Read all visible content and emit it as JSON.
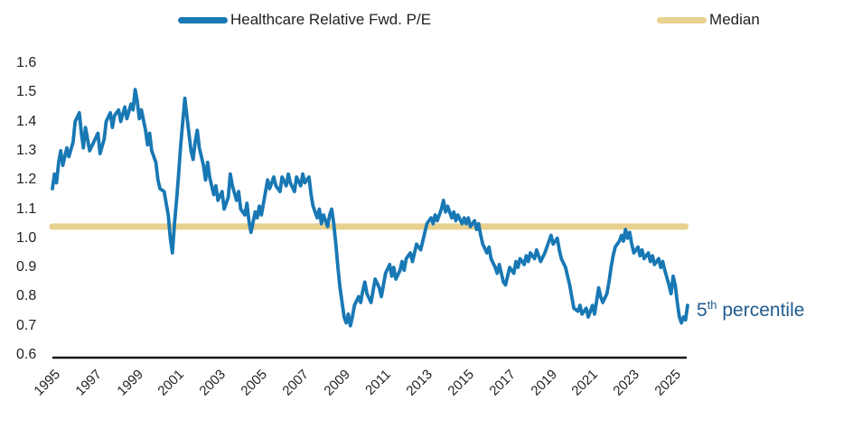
{
  "legend": {
    "series1_label": "Healthcare Relative Fwd. P/E",
    "series2_label": "Median"
  },
  "annotation": {
    "value": "5",
    "suffix": "th",
    "label": " percentile",
    "color": "#215C8F"
  },
  "colors": {
    "line": "#1878B4",
    "median": "#E8D08E",
    "axis": "#1a1a1a",
    "tick_text": "#231f20"
  },
  "chart_data": {
    "type": "line",
    "title": "",
    "xlabel": "",
    "ylabel": "",
    "legend_position": "top",
    "grid": false,
    "y_ticks": [
      "1.6",
      "1.5",
      "1.4",
      "1.3",
      "1.2",
      "1.1",
      "1.0",
      "0.9",
      "0.8",
      "0.7",
      "0.6"
    ],
    "y_tick_values": [
      1.6,
      1.5,
      1.4,
      1.3,
      1.2,
      1.1,
      1.0,
      0.9,
      0.8,
      0.7,
      0.6
    ],
    "x_ticks": [
      "1995",
      "1997",
      "1999",
      "2001",
      "2003",
      "2005",
      "2007",
      "2009",
      "2011",
      "2013",
      "2015",
      "2017",
      "2019",
      "2021",
      "2023",
      "2025"
    ],
    "x_tick_values": [
      1995,
      1997,
      1999,
      2001,
      2003,
      2005,
      2007,
      2009,
      2011,
      2013,
      2015,
      2017,
      2019,
      2021,
      2023,
      2025
    ],
    "ylim": [
      0.6,
      1.6
    ],
    "xlim": [
      1995,
      2025.9
    ],
    "median_value": 1.04,
    "series": [
      {
        "name": "Healthcare Relative Fwd. P/E",
        "points": [
          [
            1995.0,
            1.17
          ],
          [
            1995.1,
            1.22
          ],
          [
            1995.2,
            1.19
          ],
          [
            1995.3,
            1.26
          ],
          [
            1995.4,
            1.3
          ],
          [
            1995.5,
            1.25
          ],
          [
            1995.7,
            1.31
          ],
          [
            1995.8,
            1.28
          ],
          [
            1996.0,
            1.33
          ],
          [
            1996.1,
            1.4
          ],
          [
            1996.3,
            1.43
          ],
          [
            1996.4,
            1.36
          ],
          [
            1996.5,
            1.31
          ],
          [
            1996.6,
            1.38
          ],
          [
            1996.8,
            1.3
          ],
          [
            1997.0,
            1.33
          ],
          [
            1997.2,
            1.36
          ],
          [
            1997.3,
            1.29
          ],
          [
            1997.5,
            1.34
          ],
          [
            1997.6,
            1.4
          ],
          [
            1997.8,
            1.43
          ],
          [
            1997.9,
            1.38
          ],
          [
            1998.0,
            1.42
          ],
          [
            1998.2,
            1.44
          ],
          [
            1998.3,
            1.4
          ],
          [
            1998.5,
            1.45
          ],
          [
            1998.6,
            1.41
          ],
          [
            1998.8,
            1.46
          ],
          [
            1998.9,
            1.44
          ],
          [
            1999.0,
            1.51
          ],
          [
            1999.1,
            1.47
          ],
          [
            1999.2,
            1.41
          ],
          [
            1999.3,
            1.44
          ],
          [
            1999.5,
            1.37
          ],
          [
            1999.6,
            1.32
          ],
          [
            1999.7,
            1.36
          ],
          [
            1999.8,
            1.3
          ],
          [
            2000.0,
            1.26
          ],
          [
            2000.1,
            1.2
          ],
          [
            2000.2,
            1.17
          ],
          [
            2000.4,
            1.16
          ],
          [
            2000.5,
            1.12
          ],
          [
            2000.6,
            1.08
          ],
          [
            2000.7,
            1.0
          ],
          [
            2000.8,
            0.95
          ],
          [
            2000.9,
            1.05
          ],
          [
            2001.0,
            1.13
          ],
          [
            2001.1,
            1.22
          ],
          [
            2001.2,
            1.32
          ],
          [
            2001.3,
            1.4
          ],
          [
            2001.4,
            1.48
          ],
          [
            2001.5,
            1.42
          ],
          [
            2001.6,
            1.36
          ],
          [
            2001.7,
            1.3
          ],
          [
            2001.8,
            1.27
          ],
          [
            2001.9,
            1.33
          ],
          [
            2002.0,
            1.37
          ],
          [
            2002.1,
            1.31
          ],
          [
            2002.3,
            1.25
          ],
          [
            2002.4,
            1.2
          ],
          [
            2002.5,
            1.26
          ],
          [
            2002.6,
            1.21
          ],
          [
            2002.8,
            1.15
          ],
          [
            2002.9,
            1.18
          ],
          [
            2003.0,
            1.13
          ],
          [
            2003.2,
            1.16
          ],
          [
            2003.3,
            1.1
          ],
          [
            2003.5,
            1.14
          ],
          [
            2003.6,
            1.22
          ],
          [
            2003.7,
            1.18
          ],
          [
            2003.9,
            1.13
          ],
          [
            2004.0,
            1.16
          ],
          [
            2004.1,
            1.1
          ],
          [
            2004.3,
            1.08
          ],
          [
            2004.4,
            1.12
          ],
          [
            2004.5,
            1.06
          ],
          [
            2004.6,
            1.02
          ],
          [
            2004.8,
            1.09
          ],
          [
            2004.9,
            1.07
          ],
          [
            2005.0,
            1.11
          ],
          [
            2005.1,
            1.08
          ],
          [
            2005.3,
            1.16
          ],
          [
            2005.4,
            1.2
          ],
          [
            2005.5,
            1.17
          ],
          [
            2005.7,
            1.21
          ],
          [
            2005.8,
            1.18
          ],
          [
            2006.0,
            1.16
          ],
          [
            2006.1,
            1.21
          ],
          [
            2006.3,
            1.18
          ],
          [
            2006.4,
            1.22
          ],
          [
            2006.5,
            1.19
          ],
          [
            2006.7,
            1.16
          ],
          [
            2006.8,
            1.21
          ],
          [
            2007.0,
            1.18
          ],
          [
            2007.1,
            1.22
          ],
          [
            2007.2,
            1.19
          ],
          [
            2007.4,
            1.21
          ],
          [
            2007.5,
            1.15
          ],
          [
            2007.6,
            1.11
          ],
          [
            2007.8,
            1.07
          ],
          [
            2007.9,
            1.1
          ],
          [
            2008.0,
            1.05
          ],
          [
            2008.1,
            1.08
          ],
          [
            2008.3,
            1.04
          ],
          [
            2008.4,
            1.08
          ],
          [
            2008.5,
            1.1
          ],
          [
            2008.6,
            1.05
          ],
          [
            2008.7,
            0.98
          ],
          [
            2008.8,
            0.9
          ],
          [
            2008.9,
            0.83
          ],
          [
            2009.0,
            0.78
          ],
          [
            2009.1,
            0.73
          ],
          [
            2009.2,
            0.71
          ],
          [
            2009.3,
            0.74
          ],
          [
            2009.4,
            0.7
          ],
          [
            2009.5,
            0.73
          ],
          [
            2009.6,
            0.77
          ],
          [
            2009.8,
            0.8
          ],
          [
            2009.9,
            0.78
          ],
          [
            2010.0,
            0.82
          ],
          [
            2010.1,
            0.85
          ],
          [
            2010.2,
            0.81
          ],
          [
            2010.4,
            0.78
          ],
          [
            2010.5,
            0.82
          ],
          [
            2010.6,
            0.86
          ],
          [
            2010.8,
            0.83
          ],
          [
            2010.9,
            0.8
          ],
          [
            2011.0,
            0.84
          ],
          [
            2011.1,
            0.88
          ],
          [
            2011.3,
            0.91
          ],
          [
            2011.4,
            0.87
          ],
          [
            2011.5,
            0.9
          ],
          [
            2011.6,
            0.86
          ],
          [
            2011.8,
            0.89
          ],
          [
            2011.9,
            0.92
          ],
          [
            2012.0,
            0.89
          ],
          [
            2012.1,
            0.93
          ],
          [
            2012.3,
            0.95
          ],
          [
            2012.4,
            0.92
          ],
          [
            2012.5,
            0.95
          ],
          [
            2012.6,
            0.98
          ],
          [
            2012.8,
            0.96
          ],
          [
            2012.9,
            0.99
          ],
          [
            2013.0,
            1.02
          ],
          [
            2013.1,
            1.05
          ],
          [
            2013.3,
            1.07
          ],
          [
            2013.4,
            1.05
          ],
          [
            2013.5,
            1.08
          ],
          [
            2013.6,
            1.06
          ],
          [
            2013.8,
            1.1
          ],
          [
            2013.9,
            1.13
          ],
          [
            2014.0,
            1.09
          ],
          [
            2014.1,
            1.11
          ],
          [
            2014.3,
            1.07
          ],
          [
            2014.4,
            1.09
          ],
          [
            2014.5,
            1.06
          ],
          [
            2014.6,
            1.08
          ],
          [
            2014.8,
            1.05
          ],
          [
            2014.9,
            1.07
          ],
          [
            2015.0,
            1.05
          ],
          [
            2015.1,
            1.07
          ],
          [
            2015.2,
            1.04
          ],
          [
            2015.4,
            1.06
          ],
          [
            2015.5,
            1.03
          ],
          [
            2015.6,
            1.05
          ],
          [
            2015.7,
            1.01
          ],
          [
            2015.8,
            0.98
          ],
          [
            2016.0,
            0.95
          ],
          [
            2016.1,
            0.97
          ],
          [
            2016.2,
            0.93
          ],
          [
            2016.4,
            0.9
          ],
          [
            2016.5,
            0.88
          ],
          [
            2016.6,
            0.91
          ],
          [
            2016.8,
            0.85
          ],
          [
            2016.9,
            0.84
          ],
          [
            2017.0,
            0.87
          ],
          [
            2017.1,
            0.9
          ],
          [
            2017.3,
            0.88
          ],
          [
            2017.4,
            0.92
          ],
          [
            2017.5,
            0.9
          ],
          [
            2017.6,
            0.93
          ],
          [
            2017.8,
            0.91
          ],
          [
            2017.9,
            0.94
          ],
          [
            2018.0,
            0.92
          ],
          [
            2018.1,
            0.95
          ],
          [
            2018.3,
            0.93
          ],
          [
            2018.4,
            0.96
          ],
          [
            2018.5,
            0.94
          ],
          [
            2018.6,
            0.92
          ],
          [
            2018.8,
            0.95
          ],
          [
            2018.9,
            0.97
          ],
          [
            2019.0,
            0.99
          ],
          [
            2019.1,
            1.01
          ],
          [
            2019.2,
            0.98
          ],
          [
            2019.4,
            1.0
          ],
          [
            2019.5,
            0.96
          ],
          [
            2019.6,
            0.93
          ],
          [
            2019.8,
            0.9
          ],
          [
            2019.9,
            0.87
          ],
          [
            2020.0,
            0.84
          ],
          [
            2020.1,
            0.8
          ],
          [
            2020.2,
            0.76
          ],
          [
            2020.4,
            0.75
          ],
          [
            2020.5,
            0.77
          ],
          [
            2020.6,
            0.74
          ],
          [
            2020.8,
            0.76
          ],
          [
            2020.9,
            0.73
          ],
          [
            2021.0,
            0.75
          ],
          [
            2021.1,
            0.77
          ],
          [
            2021.2,
            0.74
          ],
          [
            2021.4,
            0.83
          ],
          [
            2021.5,
            0.8
          ],
          [
            2021.6,
            0.78
          ],
          [
            2021.8,
            0.81
          ],
          [
            2021.9,
            0.85
          ],
          [
            2022.0,
            0.9
          ],
          [
            2022.1,
            0.94
          ],
          [
            2022.2,
            0.97
          ],
          [
            2022.4,
            0.99
          ],
          [
            2022.5,
            1.01
          ],
          [
            2022.6,
            0.99
          ],
          [
            2022.7,
            1.03
          ],
          [
            2022.8,
            1.0
          ],
          [
            2022.9,
            1.02
          ],
          [
            2023.0,
            0.98
          ],
          [
            2023.1,
            0.95
          ],
          [
            2023.3,
            0.97
          ],
          [
            2023.4,
            0.94
          ],
          [
            2023.5,
            0.96
          ],
          [
            2023.6,
            0.93
          ],
          [
            2023.8,
            0.95
          ],
          [
            2023.9,
            0.92
          ],
          [
            2024.0,
            0.94
          ],
          [
            2024.1,
            0.91
          ],
          [
            2024.3,
            0.93
          ],
          [
            2024.4,
            0.9
          ],
          [
            2024.5,
            0.92
          ],
          [
            2024.6,
            0.89
          ],
          [
            2024.8,
            0.84
          ],
          [
            2024.9,
            0.81
          ],
          [
            2025.0,
            0.87
          ],
          [
            2025.1,
            0.84
          ],
          [
            2025.2,
            0.78
          ],
          [
            2025.3,
            0.73
          ],
          [
            2025.4,
            0.71
          ],
          [
            2025.5,
            0.73
          ],
          [
            2025.6,
            0.72
          ],
          [
            2025.7,
            0.77
          ]
        ]
      },
      {
        "name": "Median",
        "points": [
          [
            1995.0,
            1.04
          ],
          [
            2025.6,
            1.04
          ]
        ]
      }
    ]
  }
}
